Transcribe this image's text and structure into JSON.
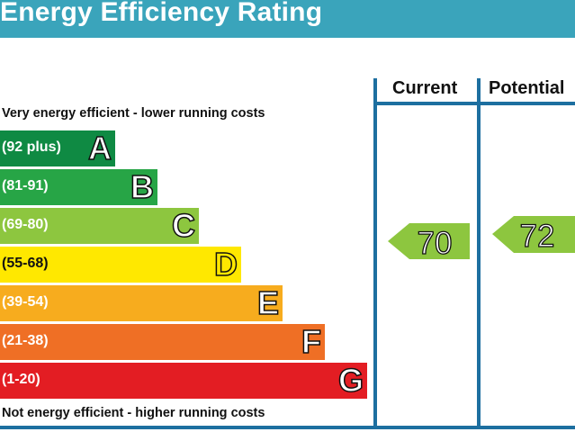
{
  "title": "Energy Efficiency Rating",
  "top_caption": "Very energy efficient - lower running costs",
  "bottom_caption": "Not energy efficient - higher running costs",
  "columns": {
    "current": "Current",
    "potential": "Potential"
  },
  "chart_data": {
    "type": "bar",
    "title": "Energy Efficiency Rating",
    "categories": [
      "A",
      "B",
      "C",
      "D",
      "E",
      "F",
      "G"
    ],
    "bands": [
      {
        "letter": "A",
        "range": "(92 plus)",
        "color": "#0f8a43"
      },
      {
        "letter": "B",
        "range": "(81-91)",
        "color": "#27a546"
      },
      {
        "letter": "C",
        "range": "(69-80)",
        "color": "#8dc63f"
      },
      {
        "letter": "D",
        "range": "(55-68)",
        "color": "#ffe800"
      },
      {
        "letter": "E",
        "range": "(39-54)",
        "color": "#f7ac1e"
      },
      {
        "letter": "F",
        "range": "(21-38)",
        "color": "#ef6f25"
      },
      {
        "letter": "G",
        "range": "(1-20)",
        "color": "#e31d23"
      }
    ],
    "current": {
      "value": 70,
      "band": "C",
      "color": "#8dc63f"
    },
    "potential": {
      "value": 72,
      "band": "C",
      "color": "#8dc63f"
    }
  }
}
